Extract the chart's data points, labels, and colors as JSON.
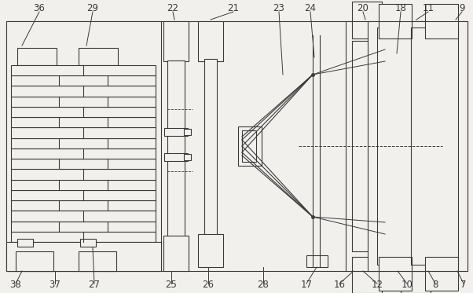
{
  "bg_color": "#f2f0ed",
  "line_color": "#3a3a3a",
  "lw": 0.8,
  "fig_width": 6.02,
  "fig_height": 3.73,
  "label_fs": 8.5
}
